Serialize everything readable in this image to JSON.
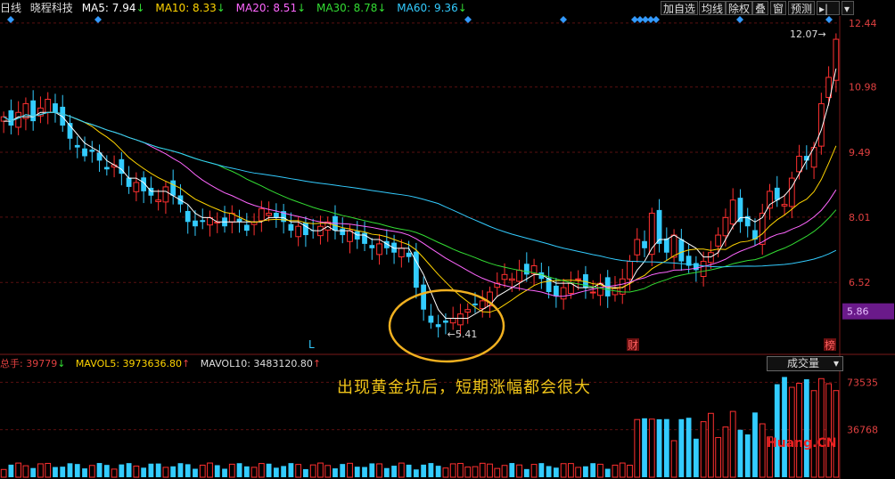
{
  "header": {
    "period": "日线",
    "stock": "晓程科技",
    "ma5": "MA5: 7.94",
    "ma10": "MA10: 8.33",
    "ma20": "MA20: 8.51",
    "ma30": "MA30: 8.78",
    "ma60": "MA60: 9.36",
    "buttons": [
      "加自选",
      "均线",
      "除权",
      "叠",
      "窗",
      "预测"
    ],
    "colors": {
      "ma5": "#ffffff",
      "ma10": "#ffd400",
      "ma20": "#ff66ff",
      "ma30": "#33dd33",
      "ma60": "#33ccff"
    }
  },
  "price_axis": {
    "ticks": [
      "12.44",
      "10.98",
      "9.49",
      "8.01",
      "6.52"
    ],
    "current": "5.86"
  },
  "markers": {
    "low_label": "5.41",
    "high_label": "12.07",
    "letter_l": "L",
    "cai": "财",
    "bang": "榜"
  },
  "volume_header": {
    "total": "总手: 39779",
    "mavol5": "MAVOL5: 3973636.80",
    "mavol10": "MAVOL10: 3483120.80",
    "select": "成交量"
  },
  "volume_axis": {
    "ticks": [
      "73535",
      "36768"
    ]
  },
  "caption": "出现黄金坑后，短期涨幅都会很大",
  "watermark": "Huang.CN",
  "chart_data": {
    "type": "candlestick",
    "ylim": [
      5.0,
      12.6
    ],
    "close": [
      10.3,
      10.1,
      10.4,
      10.6,
      10.2,
      10.5,
      10.7,
      10.4,
      10.1,
      9.8,
      9.6,
      9.4,
      9.5,
      9.3,
      9.1,
      9.2,
      9.0,
      8.7,
      8.8,
      8.6,
      8.5,
      8.4,
      8.7,
      8.5,
      8.3,
      7.9,
      7.8,
      7.9,
      8.0,
      7.9,
      7.8,
      8.1,
      7.9,
      7.7,
      7.9,
      8.2,
      8.1,
      8.0,
      7.9,
      7.7,
      7.8,
      7.6,
      7.7,
      7.8,
      7.9,
      7.7,
      7.6,
      7.7,
      7.5,
      7.4,
      7.3,
      7.4,
      7.3,
      7.2,
      7.3,
      7.1,
      6.4,
      5.9,
      5.6,
      5.5,
      5.6,
      5.7,
      5.8,
      5.9,
      6.0,
      6.1,
      6.3,
      6.5,
      6.7,
      6.6,
      6.8,
      6.7,
      6.9,
      6.6,
      6.3,
      6.2,
      6.4,
      6.5,
      6.6,
      6.4,
      6.3,
      6.5,
      6.2,
      6.4,
      6.6,
      7.0,
      7.5,
      7.3,
      8.1,
      7.4,
      7.2,
      7.6,
      7.0,
      6.9,
      6.8,
      7.0,
      7.2,
      7.6,
      8.0,
      8.4,
      7.9,
      7.8,
      7.5,
      8.1,
      8.6,
      8.4,
      8.3,
      8.9,
      9.4,
      9.3,
      9.6,
      10.6,
      11.2,
      12.07
    ],
    "ma5": [
      10.2,
      10.2,
      10.3,
      10.3,
      10.3,
      10.4,
      10.4,
      10.4,
      10.3,
      10.1,
      9.9,
      9.7,
      9.6,
      9.5,
      9.3,
      9.2,
      9.1,
      8.9,
      8.9,
      8.8,
      8.6,
      8.6,
      8.6,
      8.5,
      8.4,
      8.3,
      8.1,
      8.0,
      8.0,
      7.9,
      7.9,
      7.9,
      7.9,
      7.9,
      7.9,
      7.9,
      8.0,
      8.0,
      8.0,
      7.9,
      7.9,
      7.8,
      7.7,
      7.7,
      7.8,
      7.7,
      7.7,
      7.7,
      7.6,
      7.6,
      7.5,
      7.5,
      7.4,
      7.3,
      7.3,
      7.3,
      7.0,
      6.7,
      6.3,
      5.9,
      5.7,
      5.7,
      5.7,
      5.7,
      5.8,
      5.9,
      6.0,
      6.2,
      6.3,
      6.4,
      6.5,
      6.6,
      6.7,
      6.7,
      6.6,
      6.5,
      6.5,
      6.5,
      6.4,
      6.4,
      6.4,
      6.5,
      6.4,
      6.4,
      6.4,
      6.5,
      6.8,
      7.0,
      7.3,
      7.5,
      7.5,
      7.6,
      7.5,
      7.4,
      7.3,
      7.1,
      7.1,
      7.2,
      7.5,
      7.8,
      8.0,
      8.0,
      7.9,
      8.0,
      8.3,
      8.4,
      8.5,
      8.7,
      9.0,
      9.3,
      9.6,
      10.0,
      10.6,
      11.4
    ]
  }
}
